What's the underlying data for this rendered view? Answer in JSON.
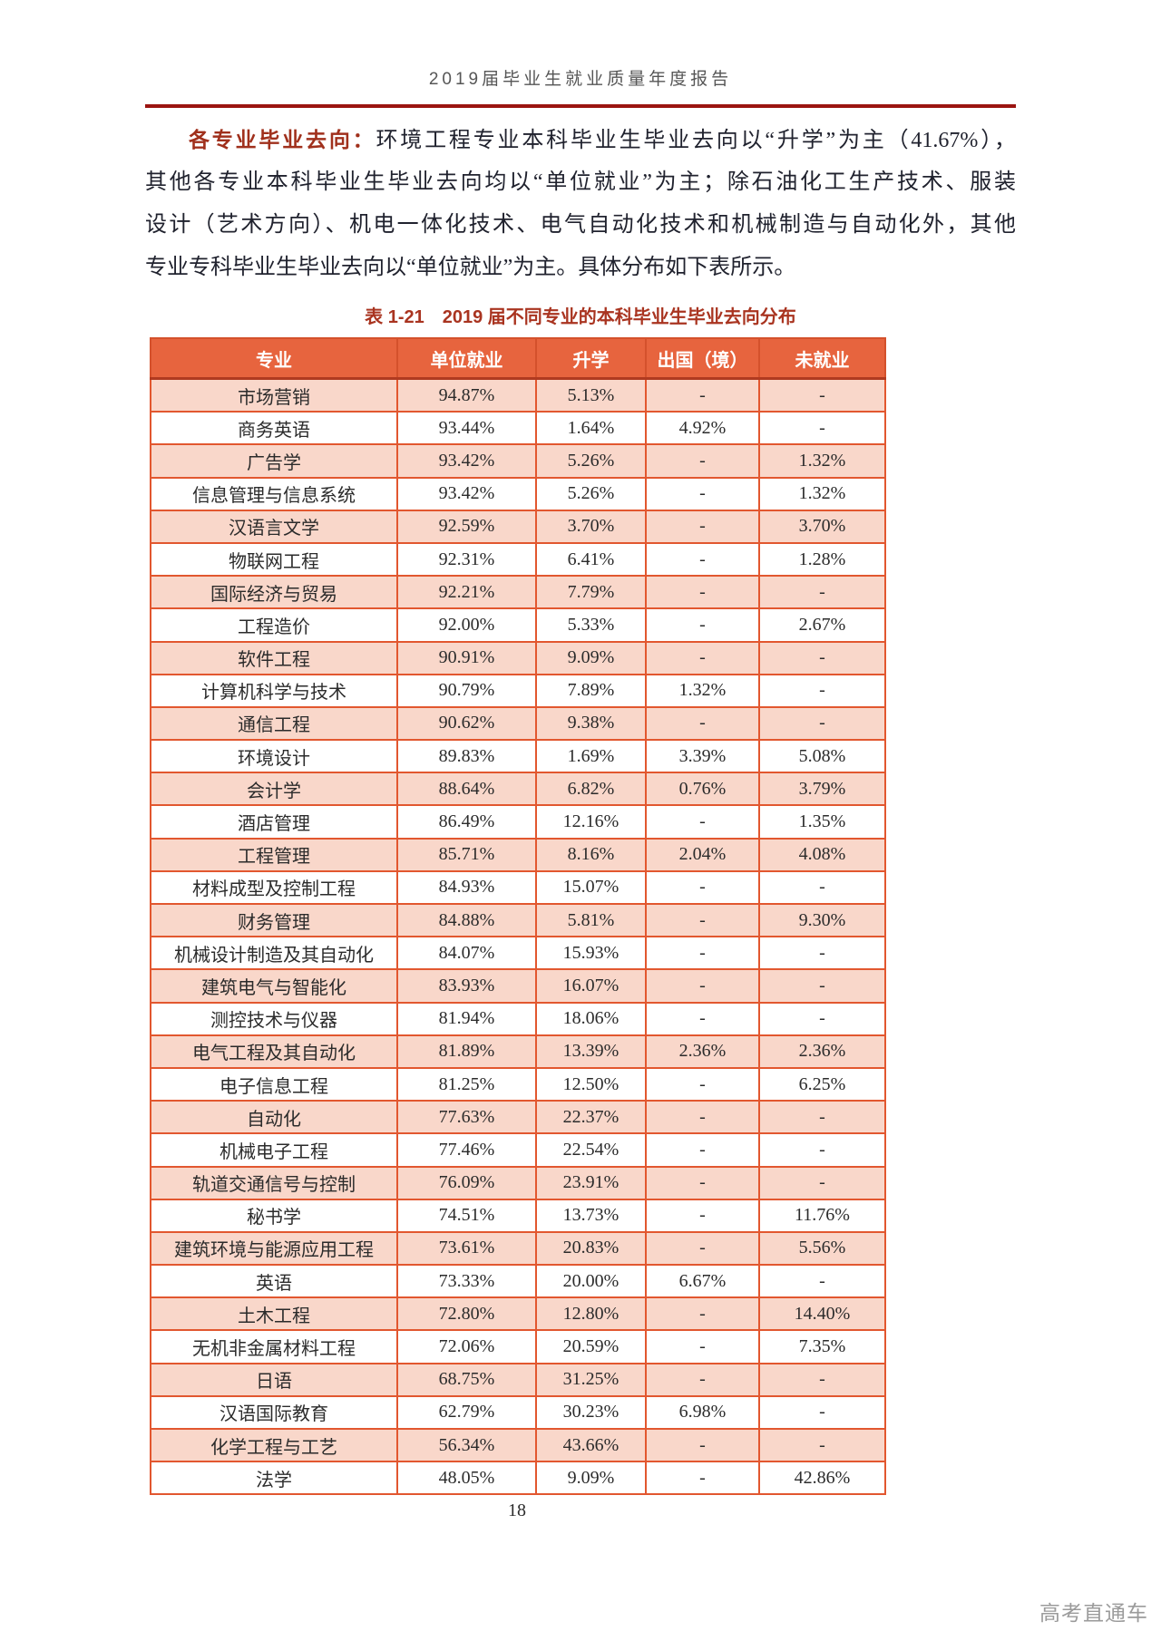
{
  "page": {
    "header_title": "2019届毕业生就业质量年度报告",
    "page_number": "18",
    "watermark": "高考直通车"
  },
  "paragraph": {
    "lead": "各专业毕业去向：",
    "lines": [
      "环境工程专业本科毕业生毕业去向以“升学”为主（41.67%），",
      "其他各专业本科毕业生毕业去向均以“单位就业”为主；除石油化工生产技术、服装",
      "设计（艺术方向）、机电一体化技术、电气自动化技术和机械制造与自动化外，其他",
      "专业专科毕业生毕业去向以“单位就业”为主。具体分布如下表所示。"
    ]
  },
  "table": {
    "caption": "表 1-21　2019 届不同专业的本科毕业生毕业去向分布",
    "columns": [
      "专业",
      "单位就业",
      "升学",
      "出国（境）",
      "未就业"
    ],
    "rows": [
      [
        "市场营销",
        "94.87%",
        "5.13%",
        "-",
        "-"
      ],
      [
        "商务英语",
        "93.44%",
        "1.64%",
        "4.92%",
        "-"
      ],
      [
        "广告学",
        "93.42%",
        "5.26%",
        "-",
        "1.32%"
      ],
      [
        "信息管理与信息系统",
        "93.42%",
        "5.26%",
        "-",
        "1.32%"
      ],
      [
        "汉语言文学",
        "92.59%",
        "3.70%",
        "-",
        "3.70%"
      ],
      [
        "物联网工程",
        "92.31%",
        "6.41%",
        "-",
        "1.28%"
      ],
      [
        "国际经济与贸易",
        "92.21%",
        "7.79%",
        "-",
        "-"
      ],
      [
        "工程造价",
        "92.00%",
        "5.33%",
        "-",
        "2.67%"
      ],
      [
        "软件工程",
        "90.91%",
        "9.09%",
        "-",
        "-"
      ],
      [
        "计算机科学与技术",
        "90.79%",
        "7.89%",
        "1.32%",
        "-"
      ],
      [
        "通信工程",
        "90.62%",
        "9.38%",
        "-",
        "-"
      ],
      [
        "环境设计",
        "89.83%",
        "1.69%",
        "3.39%",
        "5.08%"
      ],
      [
        "会计学",
        "88.64%",
        "6.82%",
        "0.76%",
        "3.79%"
      ],
      [
        "酒店管理",
        "86.49%",
        "12.16%",
        "-",
        "1.35%"
      ],
      [
        "工程管理",
        "85.71%",
        "8.16%",
        "2.04%",
        "4.08%"
      ],
      [
        "材料成型及控制工程",
        "84.93%",
        "15.07%",
        "-",
        "-"
      ],
      [
        "财务管理",
        "84.88%",
        "5.81%",
        "-",
        "9.30%"
      ],
      [
        "机械设计制造及其自动化",
        "84.07%",
        "15.93%",
        "-",
        "-"
      ],
      [
        "建筑电气与智能化",
        "83.93%",
        "16.07%",
        "-",
        "-"
      ],
      [
        "测控技术与仪器",
        "81.94%",
        "18.06%",
        "-",
        "-"
      ],
      [
        "电气工程及其自动化",
        "81.89%",
        "13.39%",
        "2.36%",
        "2.36%"
      ],
      [
        "电子信息工程",
        "81.25%",
        "12.50%",
        "-",
        "6.25%"
      ],
      [
        "自动化",
        "77.63%",
        "22.37%",
        "-",
        "-"
      ],
      [
        "机械电子工程",
        "77.46%",
        "22.54%",
        "-",
        "-"
      ],
      [
        "轨道交通信号与控制",
        "76.09%",
        "23.91%",
        "-",
        "-"
      ],
      [
        "秘书学",
        "74.51%",
        "13.73%",
        "-",
        "11.76%"
      ],
      [
        "建筑环境与能源应用工程",
        "73.61%",
        "20.83%",
        "-",
        "5.56%"
      ],
      [
        "英语",
        "73.33%",
        "20.00%",
        "6.67%",
        "-"
      ],
      [
        "土木工程",
        "72.80%",
        "12.80%",
        "-",
        "14.40%"
      ],
      [
        "无机非金属材料工程",
        "72.06%",
        "20.59%",
        "-",
        "7.35%"
      ],
      [
        "日语",
        "68.75%",
        "31.25%",
        "-",
        "-"
      ],
      [
        "汉语国际教育",
        "62.79%",
        "30.23%",
        "6.98%",
        "-"
      ],
      [
        "化学工程与工艺",
        "56.34%",
        "43.66%",
        "-",
        "-"
      ],
      [
        "法学",
        "48.05%",
        "9.09%",
        "-",
        "42.86%"
      ]
    ]
  },
  "colors": {
    "accent": "#e7643e",
    "row_alt": "#f9d7ca",
    "border": "#e2572f",
    "title_red": "#a93420",
    "rule_red": "#9b1410"
  }
}
